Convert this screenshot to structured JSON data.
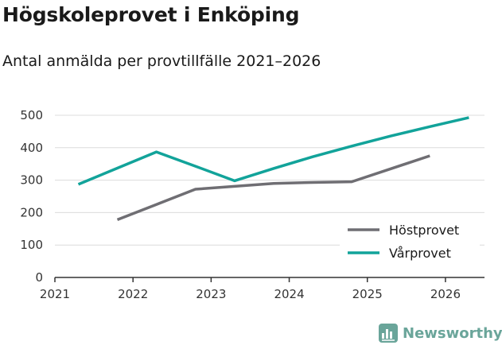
{
  "header": {
    "title": "Högskoleprovet i Enköping",
    "subtitle": "Antal anmälda per provtillfälle 2021–2026"
  },
  "brand": {
    "name": "Newsworthy",
    "icon": "newsworthy-logo-icon",
    "color": "#6aa59a"
  },
  "chart_data": {
    "type": "line",
    "title": "Högskoleprovet i Enköping",
    "subtitle": "Antal anmälda per provtillfälle 2021–2026",
    "xlabel": "",
    "ylabel": "",
    "xlim": [
      2021,
      2026.5
    ],
    "ylim": [
      0,
      500
    ],
    "x_ticks": [
      "2021",
      "2022",
      "2023",
      "2024",
      "2025",
      "2026"
    ],
    "y_ticks": [
      "0",
      "100",
      "200",
      "300",
      "400",
      "500"
    ],
    "grid": "horizontal",
    "legend_position": "bottom-right",
    "series": [
      {
        "name": "Höstprovet",
        "color": "#6f6e73",
        "x": [
          2021.8,
          2022.3,
          2022.8,
          2023.3,
          2023.8,
          2024.3,
          2024.8,
          2025.3,
          2025.8
        ],
        "values": [
          178,
          225,
          272,
          281,
          290,
          293,
          295,
          335,
          375
        ]
      },
      {
        "name": "Vårprovet",
        "color": "#12a39a",
        "x": [
          2021.3,
          2021.8,
          2022.3,
          2022.8,
          2023.3,
          2023.8,
          2024.3,
          2024.8,
          2025.3,
          2025.8,
          2026.3
        ],
        "values": [
          287,
          337,
          387,
          343,
          298,
          336,
          372,
          405,
          436,
          465,
          493
        ]
      }
    ]
  }
}
